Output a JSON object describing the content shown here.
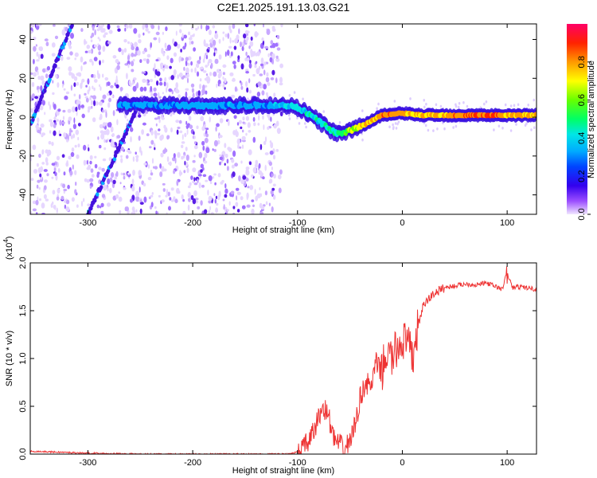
{
  "figure_title": "C2E1.2025.191.13.03.G21",
  "chart_data": [
    {
      "type": "heatmap",
      "title": "",
      "xlabel": "Height of straight line (km)",
      "ylabel": "Frequency (Hz)",
      "xlim": [
        -355,
        128
      ],
      "ylim": [
        -50,
        48
      ],
      "x_ticks": [
        -300,
        -200,
        -100,
        0,
        100
      ],
      "y_ticks": [
        -40,
        -20,
        0,
        20,
        40
      ],
      "colorbar": {
        "label": "Normalized spectral amplitude",
        "range": [
          0,
          1
        ],
        "ticks": [
          0.0,
          0.2,
          0.4,
          0.6,
          0.8
        ],
        "colormap": [
          "#f0e6ff",
          "#9b4dff",
          "#3300ee",
          "#0044ff",
          "#00aaff",
          "#00e6e6",
          "#00ff66",
          "#66ff00",
          "#ffff00",
          "#ff9900",
          "#ff2200",
          "#ff0066"
        ]
      },
      "ridge": {
        "x": [
          -270,
          -240,
          -200,
          -160,
          -130,
          -110,
          -100,
          -90,
          -80,
          -70,
          -60,
          -50,
          -40,
          -30,
          -20,
          0,
          20,
          40,
          60,
          80,
          100,
          128
        ],
        "frequency": [
          6,
          6,
          6,
          6,
          6,
          6,
          5,
          2,
          -2,
          -6,
          -9,
          -7,
          -5,
          -2,
          1,
          2,
          1,
          1,
          1,
          1,
          1,
          1
        ],
        "amplitude": [
          0.35,
          0.35,
          0.35,
          0.35,
          0.35,
          0.4,
          0.45,
          0.45,
          0.45,
          0.5,
          0.55,
          0.65,
          0.75,
          0.8,
          0.85,
          0.8,
          0.8,
          0.8,
          0.85,
          0.9,
          0.8,
          0.75
        ]
      },
      "streaks": [
        {
          "x": [
            -355,
            -315
          ],
          "frequency": [
            -4,
            48
          ]
        },
        {
          "x": [
            -300,
            -255
          ],
          "frequency": [
            -50,
            2
          ]
        }
      ],
      "noise_extent_x": [
        -355,
        -115
      ]
    },
    {
      "type": "line",
      "title": "",
      "xlabel": "Height of straight line (km)",
      "ylabel": "SNR (10 * v/v)",
      "y_scale_label": "(x10",
      "y_scale_exponent": "4",
      "xlim": [
        -355,
        128
      ],
      "ylim": [
        0,
        2.0
      ],
      "x_ticks": [
        -300,
        -200,
        -100,
        0,
        100
      ],
      "y_ticks": [
        "0.0",
        "0.5",
        "1.0",
        "1.5",
        "2.0"
      ],
      "line_color": "#ee3333",
      "series": [
        {
          "x": [
            -355,
            -300,
            -250,
            -200,
            -150,
            -110,
            -100,
            -95,
            -90,
            -85,
            -80,
            -75,
            -70,
            -65,
            -60,
            -55,
            -50,
            -45,
            -40,
            -35,
            -30,
            -25,
            -20,
            -15,
            -10,
            -5,
            0,
            5,
            10,
            15,
            20,
            25,
            30,
            40,
            50,
            60,
            70,
            80,
            90,
            95,
            100,
            105,
            110,
            120,
            128
          ],
          "values": [
            0.03,
            0.01,
            0.0,
            0.0,
            0.0,
            0.0,
            0.02,
            0.06,
            0.12,
            0.22,
            0.38,
            0.5,
            0.38,
            0.15,
            0.1,
            0.04,
            0.15,
            0.3,
            0.6,
            0.75,
            0.7,
            0.95,
            0.85,
            1.05,
            1.0,
            1.1,
            1.2,
            1.15,
            1.0,
            1.35,
            1.55,
            1.62,
            1.68,
            1.74,
            1.76,
            1.78,
            1.77,
            1.79,
            1.75,
            1.72,
            1.9,
            1.74,
            1.75,
            1.74,
            1.72
          ]
        }
      ]
    }
  ]
}
